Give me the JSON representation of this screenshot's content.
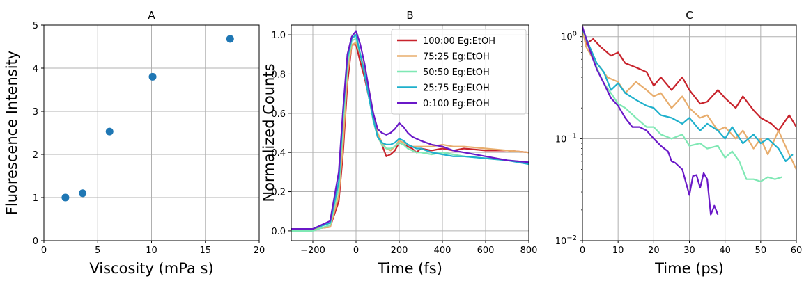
{
  "chart_data": [
    {
      "type": "scatter",
      "title": "A",
      "xlabel": "Viscosity (mPa s)",
      "ylabel": "Fluorescence Intensity",
      "xlim": [
        0,
        20
      ],
      "ylim": [
        0,
        5
      ],
      "xticks": [
        0,
        5,
        10,
        15,
        20
      ],
      "yticks": [
        0,
        1,
        2,
        3,
        4,
        5
      ],
      "grid": true,
      "color": "#1f77b4",
      "points": [
        {
          "x": 2.0,
          "y": 1.0
        },
        {
          "x": 3.6,
          "y": 1.1
        },
        {
          "x": 6.1,
          "y": 2.53
        },
        {
          "x": 10.1,
          "y": 3.8
        },
        {
          "x": 17.3,
          "y": 4.68
        }
      ]
    },
    {
      "type": "line",
      "title": "B",
      "xlabel": "Time (fs)",
      "ylabel": "Normalized Counts",
      "xlim": [
        -300,
        800
      ],
      "ylim": [
        -0.05,
        1.05
      ],
      "xticks": [
        -200,
        0,
        200,
        400,
        600,
        800
      ],
      "yticks": [
        0.0,
        0.2,
        0.4,
        0.6,
        0.8,
        1.0
      ],
      "grid": true,
      "legend": "top-right",
      "series": [
        {
          "name": "100:00 Eg:EtOH",
          "color": "#c8232c",
          "x": [
            -300,
            -200,
            -120,
            -80,
            -60,
            -40,
            -20,
            0,
            20,
            40,
            60,
            80,
            100,
            120,
            140,
            160,
            180,
            200,
            220,
            240,
            260,
            280,
            300,
            350,
            400,
            450,
            500,
            600,
            700,
            800
          ],
          "y": [
            0.0,
            0.01,
            0.02,
            0.15,
            0.4,
            0.75,
            0.95,
            0.95,
            0.86,
            0.78,
            0.68,
            0.58,
            0.48,
            0.44,
            0.38,
            0.39,
            0.41,
            0.45,
            0.44,
            0.43,
            0.42,
            0.4,
            0.42,
            0.41,
            0.42,
            0.41,
            0.42,
            0.41,
            0.41,
            0.4
          ]
        },
        {
          "name": "75:25 Eg:EtOH",
          "color": "#e8ad6d",
          "x": [
            -300,
            -200,
            -120,
            -80,
            -60,
            -40,
            -20,
            0,
            20,
            40,
            60,
            80,
            100,
            120,
            140,
            160,
            180,
            200,
            220,
            240,
            260,
            280,
            300,
            350,
            400,
            450,
            500,
            600,
            700,
            800
          ],
          "y": [
            0.0,
            0.01,
            0.02,
            0.18,
            0.45,
            0.8,
            0.95,
            0.96,
            0.9,
            0.82,
            0.72,
            0.6,
            0.5,
            0.45,
            0.42,
            0.41,
            0.43,
            0.46,
            0.45,
            0.44,
            0.43,
            0.43,
            0.43,
            0.43,
            0.44,
            0.43,
            0.43,
            0.42,
            0.41,
            0.4
          ]
        },
        {
          "name": "50:50 Eg:EtOH",
          "color": "#7fe8b4",
          "x": [
            -300,
            -200,
            -120,
            -80,
            -60,
            -40,
            -20,
            0,
            20,
            40,
            60,
            80,
            100,
            120,
            140,
            160,
            180,
            200,
            220,
            240,
            260,
            280,
            300,
            350,
            400,
            450,
            500,
            600,
            700,
            800
          ],
          "y": [
            0.0,
            0.0,
            0.03,
            0.22,
            0.55,
            0.85,
            0.97,
            0.98,
            0.9,
            0.8,
            0.68,
            0.56,
            0.48,
            0.44,
            0.42,
            0.42,
            0.43,
            0.45,
            0.44,
            0.42,
            0.41,
            0.4,
            0.4,
            0.39,
            0.4,
            0.39,
            0.38,
            0.37,
            0.36,
            0.35
          ]
        },
        {
          "name": "25:75 Eg:EtOH",
          "color": "#1eb0cc",
          "x": [
            -300,
            -200,
            -120,
            -80,
            -60,
            -40,
            -20,
            0,
            20,
            40,
            60,
            80,
            100,
            120,
            140,
            160,
            180,
            200,
            220,
            240,
            260,
            280,
            300,
            350,
            400,
            450,
            500,
            600,
            700,
            800
          ],
          "y": [
            0.01,
            0.01,
            0.04,
            0.25,
            0.6,
            0.88,
            0.98,
            1.0,
            0.9,
            0.8,
            0.68,
            0.57,
            0.48,
            0.45,
            0.44,
            0.44,
            0.45,
            0.47,
            0.46,
            0.44,
            0.43,
            0.42,
            0.42,
            0.4,
            0.39,
            0.38,
            0.38,
            0.37,
            0.36,
            0.34
          ]
        },
        {
          "name": "0:100 Eg:EtOH",
          "color": "#6a18c8",
          "x": [
            -300,
            -200,
            -120,
            -80,
            -60,
            -40,
            -20,
            0,
            20,
            40,
            60,
            80,
            100,
            120,
            140,
            160,
            180,
            200,
            220,
            240,
            260,
            280,
            300,
            350,
            400,
            450,
            500,
            600,
            700,
            800
          ],
          "y": [
            0.01,
            0.01,
            0.05,
            0.3,
            0.62,
            0.9,
            0.99,
            1.02,
            0.95,
            0.85,
            0.72,
            0.6,
            0.52,
            0.5,
            0.49,
            0.5,
            0.52,
            0.55,
            0.53,
            0.5,
            0.48,
            0.47,
            0.46,
            0.44,
            0.43,
            0.41,
            0.4,
            0.38,
            0.36,
            0.35
          ]
        }
      ]
    },
    {
      "type": "line",
      "title": "C",
      "xlabel": "Time (ps)",
      "ylabel": "",
      "xlim": [
        0,
        60
      ],
      "ylim": [
        0.01,
        1.3
      ],
      "yscale": "log",
      "xticks": [
        0,
        10,
        20,
        30,
        40,
        50,
        60
      ],
      "ytick_labels": [
        "10^-2",
        "10^-1",
        "10^0"
      ],
      "grid": true,
      "series": [
        {
          "color": "#c8232c",
          "x": [
            0,
            1,
            3,
            5,
            8,
            10,
            12,
            15,
            18,
            20,
            22,
            25,
            28,
            30,
            33,
            35,
            38,
            40,
            43,
            45,
            48,
            50,
            53,
            55,
            58,
            60
          ],
          "y": [
            1.25,
            0.85,
            0.95,
            0.8,
            0.65,
            0.7,
            0.55,
            0.5,
            0.45,
            0.33,
            0.4,
            0.3,
            0.4,
            0.3,
            0.22,
            0.23,
            0.3,
            0.25,
            0.2,
            0.26,
            0.19,
            0.16,
            0.14,
            0.12,
            0.17,
            0.13
          ]
        },
        {
          "color": "#e8ad6d",
          "x": [
            0,
            1,
            3,
            5,
            7,
            10,
            12,
            15,
            18,
            20,
            22,
            25,
            28,
            30,
            33,
            35,
            38,
            40,
            43,
            45,
            48,
            50,
            52,
            55,
            58,
            60
          ],
          "y": [
            1.2,
            0.8,
            0.6,
            0.5,
            0.4,
            0.36,
            0.28,
            0.36,
            0.3,
            0.26,
            0.28,
            0.2,
            0.26,
            0.2,
            0.16,
            0.17,
            0.12,
            0.13,
            0.1,
            0.12,
            0.08,
            0.1,
            0.07,
            0.12,
            0.07,
            0.05
          ]
        },
        {
          "color": "#7fe8b4",
          "x": [
            0,
            2,
            4,
            6,
            8,
            10,
            12,
            15,
            18,
            20,
            22,
            25,
            28,
            30,
            33,
            35,
            38,
            40,
            42,
            44,
            46,
            48,
            50,
            52,
            54,
            56
          ],
          "y": [
            1.2,
            0.75,
            0.5,
            0.35,
            0.28,
            0.22,
            0.2,
            0.16,
            0.13,
            0.13,
            0.11,
            0.1,
            0.11,
            0.085,
            0.09,
            0.08,
            0.085,
            0.065,
            0.075,
            0.06,
            0.04,
            0.04,
            0.038,
            0.042,
            0.04,
            0.042
          ]
        },
        {
          "color": "#1eb0cc",
          "x": [
            0,
            2,
            4,
            6,
            8,
            10,
            12,
            15,
            18,
            20,
            22,
            25,
            28,
            30,
            33,
            35,
            38,
            40,
            42,
            45,
            48,
            50,
            52,
            55,
            57,
            59
          ],
          "y": [
            1.2,
            0.8,
            0.55,
            0.45,
            0.3,
            0.35,
            0.28,
            0.24,
            0.21,
            0.2,
            0.17,
            0.16,
            0.14,
            0.16,
            0.12,
            0.14,
            0.12,
            0.1,
            0.13,
            0.09,
            0.11,
            0.09,
            0.1,
            0.08,
            0.06,
            0.07
          ]
        },
        {
          "color": "#6a18c8",
          "x": [
            0,
            2,
            4,
            6,
            8,
            10,
            12,
            14,
            16,
            18,
            20,
            22,
            24,
            25,
            26,
            28,
            30,
            31,
            32,
            33,
            34,
            35,
            36,
            37,
            38
          ],
          "y": [
            1.25,
            0.75,
            0.48,
            0.35,
            0.25,
            0.21,
            0.16,
            0.13,
            0.13,
            0.12,
            0.1,
            0.085,
            0.075,
            0.06,
            0.058,
            0.05,
            0.028,
            0.043,
            0.044,
            0.033,
            0.046,
            0.04,
            0.018,
            0.022,
            0.018
          ]
        }
      ]
    }
  ]
}
